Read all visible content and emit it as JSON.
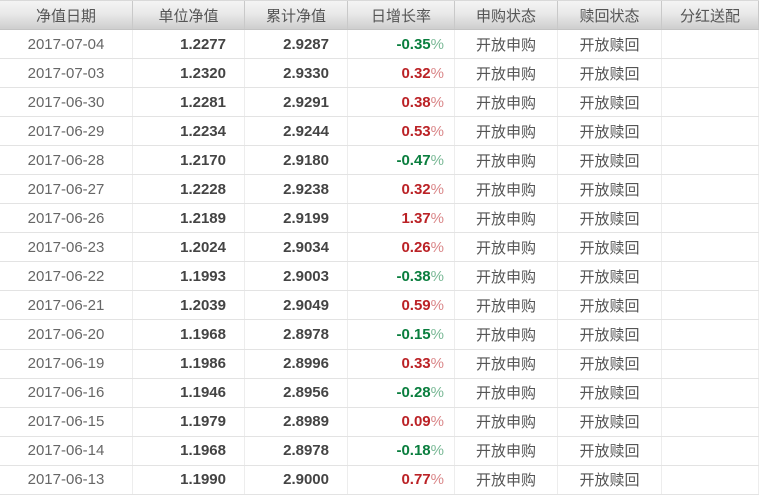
{
  "colors": {
    "positive_growth_red": "#bb2226",
    "negative_growth_green": "#0a7e3e",
    "header_gradient_top": "#f4f4f4",
    "header_gradient_bottom": "#cecece",
    "grid_line": "#e3e3e3"
  },
  "table": {
    "percent_sign": "%",
    "columns": [
      {
        "label": "净值日期"
      },
      {
        "label": "单位净值"
      },
      {
        "label": "累计净值"
      },
      {
        "label": "日增长率"
      },
      {
        "label": "申购状态"
      },
      {
        "label": "赎回状态"
      },
      {
        "label": "分红送配"
      }
    ],
    "rows": [
      {
        "date": "2017-07-04",
        "nav": "1.2277",
        "acc_nav": "2.9287",
        "growth": "-0.35",
        "direction": "down",
        "purchase_status": "开放申购",
        "redeem_status": "开放赎回",
        "dividend": ""
      },
      {
        "date": "2017-07-03",
        "nav": "1.2320",
        "acc_nav": "2.9330",
        "growth": "0.32",
        "direction": "up",
        "purchase_status": "开放申购",
        "redeem_status": "开放赎回",
        "dividend": ""
      },
      {
        "date": "2017-06-30",
        "nav": "1.2281",
        "acc_nav": "2.9291",
        "growth": "0.38",
        "direction": "up",
        "purchase_status": "开放申购",
        "redeem_status": "开放赎回",
        "dividend": ""
      },
      {
        "date": "2017-06-29",
        "nav": "1.2234",
        "acc_nav": "2.9244",
        "growth": "0.53",
        "direction": "up",
        "purchase_status": "开放申购",
        "redeem_status": "开放赎回",
        "dividend": ""
      },
      {
        "date": "2017-06-28",
        "nav": "1.2170",
        "acc_nav": "2.9180",
        "growth": "-0.47",
        "direction": "down",
        "purchase_status": "开放申购",
        "redeem_status": "开放赎回",
        "dividend": ""
      },
      {
        "date": "2017-06-27",
        "nav": "1.2228",
        "acc_nav": "2.9238",
        "growth": "0.32",
        "direction": "up",
        "purchase_status": "开放申购",
        "redeem_status": "开放赎回",
        "dividend": ""
      },
      {
        "date": "2017-06-26",
        "nav": "1.2189",
        "acc_nav": "2.9199",
        "growth": "1.37",
        "direction": "up",
        "purchase_status": "开放申购",
        "redeem_status": "开放赎回",
        "dividend": ""
      },
      {
        "date": "2017-06-23",
        "nav": "1.2024",
        "acc_nav": "2.9034",
        "growth": "0.26",
        "direction": "up",
        "purchase_status": "开放申购",
        "redeem_status": "开放赎回",
        "dividend": ""
      },
      {
        "date": "2017-06-22",
        "nav": "1.1993",
        "acc_nav": "2.9003",
        "growth": "-0.38",
        "direction": "down",
        "purchase_status": "开放申购",
        "redeem_status": "开放赎回",
        "dividend": ""
      },
      {
        "date": "2017-06-21",
        "nav": "1.2039",
        "acc_nav": "2.9049",
        "growth": "0.59",
        "direction": "up",
        "purchase_status": "开放申购",
        "redeem_status": "开放赎回",
        "dividend": ""
      },
      {
        "date": "2017-06-20",
        "nav": "1.1968",
        "acc_nav": "2.8978",
        "growth": "-0.15",
        "direction": "down",
        "purchase_status": "开放申购",
        "redeem_status": "开放赎回",
        "dividend": ""
      },
      {
        "date": "2017-06-19",
        "nav": "1.1986",
        "acc_nav": "2.8996",
        "growth": "0.33",
        "direction": "up",
        "purchase_status": "开放申购",
        "redeem_status": "开放赎回",
        "dividend": ""
      },
      {
        "date": "2017-06-16",
        "nav": "1.1946",
        "acc_nav": "2.8956",
        "growth": "-0.28",
        "direction": "down",
        "purchase_status": "开放申购",
        "redeem_status": "开放赎回",
        "dividend": ""
      },
      {
        "date": "2017-06-15",
        "nav": "1.1979",
        "acc_nav": "2.8989",
        "growth": "0.09",
        "direction": "up",
        "purchase_status": "开放申购",
        "redeem_status": "开放赎回",
        "dividend": ""
      },
      {
        "date": "2017-06-14",
        "nav": "1.1968",
        "acc_nav": "2.8978",
        "growth": "-0.18",
        "direction": "down",
        "purchase_status": "开放申购",
        "redeem_status": "开放赎回",
        "dividend": ""
      },
      {
        "date": "2017-06-13",
        "nav": "1.1990",
        "acc_nav": "2.9000",
        "growth": "0.77",
        "direction": "up",
        "purchase_status": "开放申购",
        "redeem_status": "开放赎回",
        "dividend": ""
      }
    ]
  }
}
